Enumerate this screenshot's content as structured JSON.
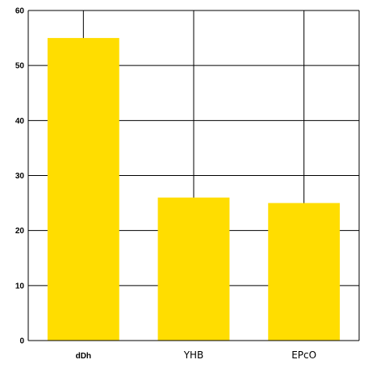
{
  "chart_data": {
    "type": "bar",
    "categories": [
      "dDh",
      "YHB",
      "EPcO"
    ],
    "values": [
      55,
      26,
      25
    ],
    "title": "",
    "xlabel": "",
    "ylabel": "",
    "ylim": [
      0,
      60
    ],
    "yticks": [
      "0",
      "10",
      "20",
      "30",
      "40",
      "50",
      "60"
    ],
    "grid": true,
    "bar_color": "#FFDD00",
    "grid_color": "#000000"
  }
}
